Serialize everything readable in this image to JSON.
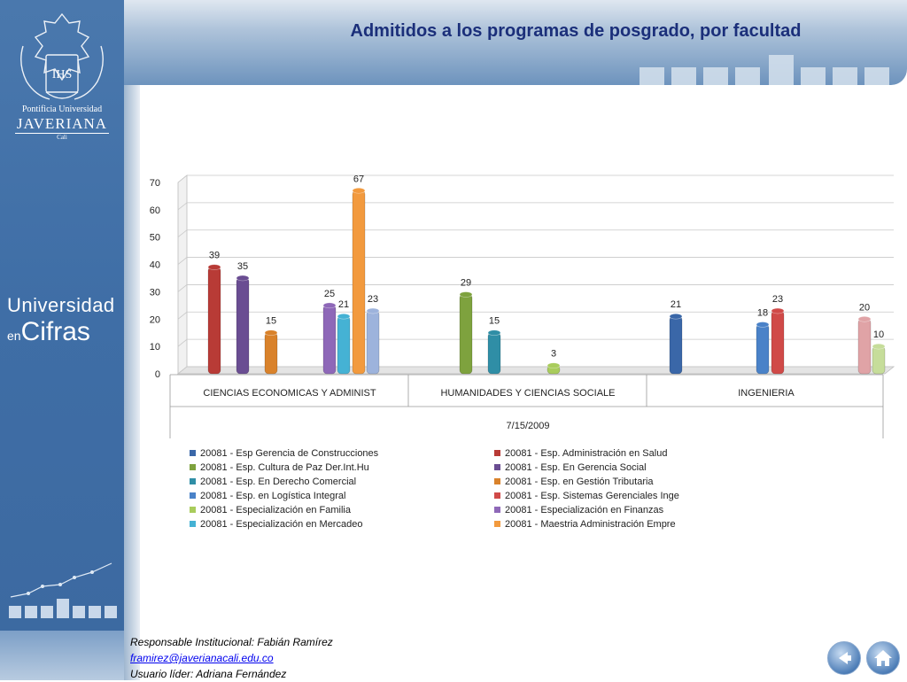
{
  "slide": {
    "title": "Admitidos a los programas de posgrado, por facultad"
  },
  "sidebar": {
    "university_line1": "Pontificia Universidad",
    "university_line2": "JAVERIANA",
    "university_line3": "Cali",
    "section_line1": "Universidad",
    "section_line2": "en",
    "section_line3": "Cifras",
    "seal_letters": "IHS"
  },
  "footer": {
    "responsible": "Responsable Institucional: Fabián Ramírez",
    "email": "framirez@javerianacali.edu.co",
    "leader": "Usuario líder: Adriana Fernández"
  },
  "nav": {
    "back_icon": "back-arrow-icon",
    "home_icon": "home-icon"
  },
  "chart_data": {
    "type": "bar",
    "categories": [
      "CIENCIAS ECONOMICAS Y ADMINIST",
      "HUMANIDADES Y CIENCIAS SOCIALE",
      "INGENIERIA"
    ],
    "xlabel": "7/15/2009",
    "ylim": [
      0,
      70
    ],
    "yticks": [
      0,
      10,
      20,
      30,
      40,
      50,
      60,
      70
    ],
    "grid": true,
    "legend_position": "bottom",
    "series": [
      {
        "name": "20081 - Esp Gerencia de Construcciones",
        "color": "#3a67a8",
        "values": [
          null,
          null,
          21
        ]
      },
      {
        "name": "20081 - Esp. Administración en Salud",
        "color": "#b83b36",
        "values": [
          39,
          null,
          null
        ]
      },
      {
        "name": "20081 - Esp. Cultura de Paz Der.Int.Hu",
        "color": "#7ea23e",
        "values": [
          null,
          29,
          null
        ]
      },
      {
        "name": "20081 - Esp. En  Gerencia Social",
        "color": "#6a4d92",
        "values": [
          35,
          null,
          null
        ]
      },
      {
        "name": "20081 - Esp. En Derecho Comercial",
        "color": "#2f8ea6",
        "values": [
          null,
          15,
          null
        ]
      },
      {
        "name": "20081 - Esp. en Gestión Tributaria",
        "color": "#d9822b",
        "values": [
          15,
          null,
          null
        ]
      },
      {
        "name": "20081 - Esp. en Logística Integral",
        "color": "#4a82c8",
        "values": [
          null,
          null,
          18
        ]
      },
      {
        "name": "20081 - Esp. Sistemas Gerenciales Inge",
        "color": "#d04a48",
        "values": [
          null,
          null,
          23
        ]
      },
      {
        "name": "20081 - Especialización en Familia",
        "color": "#a9cc5c",
        "values": [
          null,
          3,
          null
        ]
      },
      {
        "name": "20081 - Especialización en Finanzas",
        "color": "#8e68b8",
        "values": [
          25,
          null,
          null
        ]
      },
      {
        "name": "20081 - Especialización en Mercadeo",
        "color": "#45b2d4",
        "values": [
          21,
          null,
          null
        ]
      },
      {
        "name": "20081 - Maestria  Administración Empre",
        "color": "#f29a3e",
        "values": [
          67,
          null,
          null
        ]
      },
      {
        "name": "",
        "color": "#9db3dc",
        "values": [
          23,
          null,
          null
        ]
      },
      {
        "name": "",
        "color": "#e0a3a6",
        "values": [
          null,
          null,
          20
        ]
      },
      {
        "name": "",
        "color": "#c6dd9a",
        "values": [
          null,
          null,
          10
        ]
      }
    ]
  }
}
